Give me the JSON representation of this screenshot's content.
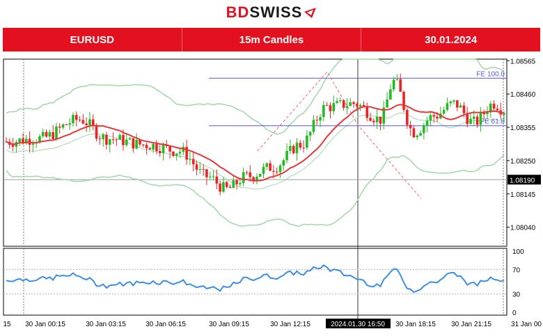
{
  "brand": {
    "prefix": "BD",
    "suffix": "SWISS",
    "color": "#e3101f"
  },
  "header": {
    "symbol": "EURUSD",
    "timeframe": "15m Candles",
    "date": "30.01.2024"
  },
  "chart_data": {
    "type": "candlestick",
    "ylim": [
      1.0798,
      1.0857
    ],
    "price_ticks": [
      "1.08040",
      "1.08145",
      "1.08250",
      "1.08355",
      "1.08460",
      "1.08565"
    ],
    "current_price": {
      "label": "1.08190",
      "value": 1.0819
    },
    "fib_levels": [
      {
        "label": "FE 100.0",
        "value": 1.0851
      },
      {
        "label": "FE 61.8",
        "value": 1.0836
      }
    ],
    "x_ticks": [
      "15",
      "30 Jan 00:15",
      "30 Jan 03:15",
      "30 Jan 06:15",
      "30 Jan 09:15",
      "30 Jan 12:15",
      "30 Jan 18:15",
      "30 Jan 21:15",
      "31 Jan 00"
    ],
    "crosshair_label": "2024.01.30 16:50",
    "oscillator": {
      "ylim": [
        0,
        100
      ],
      "ticks": [
        "100",
        "70",
        "30",
        "0"
      ],
      "levels": [
        30,
        70
      ]
    },
    "colors": {
      "bull": "#22bb22",
      "bear": "#ee2222",
      "ma": "#e83535",
      "band": "#9ed8a8",
      "fib": "#5555dd",
      "osc": "#3a8ee6"
    }
  }
}
